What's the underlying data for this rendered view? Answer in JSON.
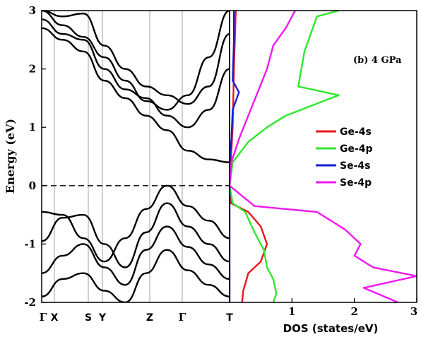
{
  "chart_data": [
    {
      "type": "line",
      "panel": "band-structure",
      "ylabel": "Energy (eV)",
      "ylim": [
        -2,
        3
      ],
      "yticks": [
        "-2",
        "-1",
        "0",
        "1",
        "2",
        "3"
      ],
      "kpoints": [
        "Γ",
        "X",
        "S",
        "Y",
        "Z",
        "Γ",
        "T"
      ],
      "fermi_level": 0,
      "series_color": "#000000",
      "bands": [
        {
          "name": "",
          "values": [
            3.0,
            2.75,
            2.55,
            2.2,
            1.8,
            1.45,
            1.3,
            1.55,
            2.2,
            3.0
          ]
        },
        {
          "name": "",
          "values": [
            2.85,
            2.6,
            2.5,
            2.0,
            1.65,
            1.5,
            1.2,
            1.0,
            1.3,
            2.0
          ]
        },
        {
          "name": "",
          "values": [
            2.7,
            2.5,
            2.3,
            1.8,
            1.5,
            1.2,
            0.95,
            0.6,
            0.45,
            0.4
          ]
        },
        {
          "name": "",
          "values": [
            3.0,
            2.9,
            2.95,
            2.4,
            2.0,
            1.7,
            1.55,
            1.4,
            1.7,
            2.6
          ]
        },
        {
          "name": "",
          "values": [
            -0.45,
            -0.5,
            -0.9,
            -1.3,
            -0.9,
            -0.4,
            0.0,
            -0.35,
            -0.6,
            -0.9
          ]
        },
        {
          "name": "",
          "values": [
            -0.95,
            -0.55,
            -0.5,
            -1.0,
            -1.4,
            -0.8,
            -0.3,
            -0.7,
            -1.0,
            -1.3
          ]
        },
        {
          "name": "",
          "values": [
            -1.5,
            -1.2,
            -1.0,
            -1.4,
            -1.7,
            -1.1,
            -0.7,
            -1.05,
            -1.35,
            -1.6
          ]
        },
        {
          "name": "",
          "values": [
            -1.9,
            -1.6,
            -1.5,
            -1.8,
            -2.0,
            -1.5,
            -1.1,
            -1.45,
            -1.7,
            -1.9
          ]
        }
      ]
    },
    {
      "type": "line",
      "panel": "dos",
      "xlabel": "DOS (states/eV)",
      "xlim": [
        0,
        3
      ],
      "ylim": [
        -2,
        3
      ],
      "xticks": [
        "0",
        "1",
        "2",
        "3"
      ],
      "annotation": "(b) 4 GPa",
      "legend_position": "right",
      "series": [
        {
          "name": "Ge-4s",
          "color": "#e8161b",
          "points": [
            [
              0.1,
              3.0
            ],
            [
              0.07,
              2.0
            ],
            [
              0.05,
              1.0
            ],
            [
              0.02,
              0.4
            ],
            [
              0.0,
              0.0
            ],
            [
              0.02,
              -0.3
            ],
            [
              0.3,
              -0.45
            ],
            [
              0.5,
              -0.7
            ],
            [
              0.6,
              -1.0
            ],
            [
              0.5,
              -1.3
            ],
            [
              0.3,
              -1.5
            ],
            [
              0.22,
              -1.8
            ],
            [
              0.2,
              -2.0
            ]
          ]
        },
        {
          "name": "Ge-4p",
          "color": "#2ee82e",
          "points": [
            [
              1.75,
              3.0
            ],
            [
              1.4,
              2.9
            ],
            [
              1.2,
              2.3
            ],
            [
              1.1,
              1.7
            ],
            [
              1.75,
              1.55
            ],
            [
              0.9,
              1.2
            ],
            [
              0.6,
              1.0
            ],
            [
              0.3,
              0.75
            ],
            [
              0.05,
              0.4
            ],
            [
              0.0,
              0.0
            ],
            [
              0.05,
              -0.3
            ],
            [
              0.25,
              -0.45
            ],
            [
              0.4,
              -0.8
            ],
            [
              0.55,
              -1.1
            ],
            [
              0.6,
              -1.4
            ],
            [
              0.7,
              -1.6
            ],
            [
              0.75,
              -1.85
            ],
            [
              0.7,
              -2.0
            ]
          ]
        },
        {
          "name": "Se-4s",
          "color": "#1020d8",
          "points": [
            [
              0.07,
              3.0
            ],
            [
              0.07,
              2.5
            ],
            [
              0.05,
              1.8
            ],
            [
              0.15,
              1.6
            ],
            [
              0.05,
              1.3
            ],
            [
              0.03,
              0.8
            ],
            [
              0.0,
              0.4
            ],
            [
              0.0,
              0.0
            ],
            [
              0.0,
              -0.4
            ],
            [
              0.0,
              -2.0
            ]
          ]
        },
        {
          "name": "Se-4p",
          "color": "#f018f0",
          "points": [
            [
              1.05,
              3.0
            ],
            [
              0.9,
              2.7
            ],
            [
              0.7,
              2.4
            ],
            [
              0.6,
              2.0
            ],
            [
              0.45,
              1.6
            ],
            [
              0.3,
              1.2
            ],
            [
              0.15,
              0.8
            ],
            [
              0.03,
              0.4
            ],
            [
              0.0,
              0.0
            ],
            [
              0.4,
              -0.35
            ],
            [
              1.4,
              -0.45
            ],
            [
              1.85,
              -0.75
            ],
            [
              2.1,
              -1.0
            ],
            [
              2.0,
              -1.2
            ],
            [
              2.3,
              -1.4
            ],
            [
              3.0,
              -1.55
            ],
            [
              2.15,
              -1.75
            ],
            [
              2.7,
              -2.0
            ]
          ]
        }
      ]
    }
  ]
}
